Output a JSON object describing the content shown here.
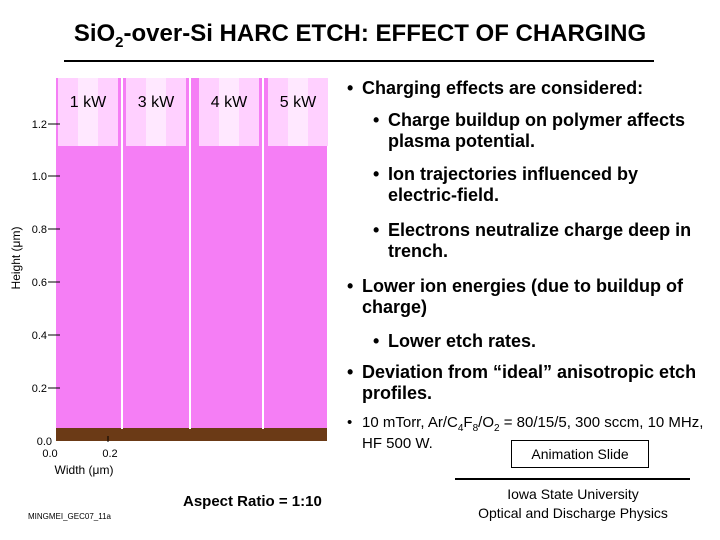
{
  "slide": {
    "title_pre": "Si",
    "title_o": "O",
    "title_sub": "2",
    "title_post": "-over-Si HARC ETCH: EFFECT OF CHARGING",
    "slide_id": "MINGMEI_GEC07_11a"
  },
  "chart": {
    "power_labels": [
      "1 kW",
      "3 kW",
      "4 kW",
      "5 kW"
    ],
    "y_ticks": [
      "1.2",
      "1.0",
      "0.8",
      "0.6",
      "0.4",
      "0.2",
      "0.0"
    ],
    "x_ticks": [
      "0.0",
      "0.2"
    ],
    "y_axis_label": "Height (μm)",
    "x_axis_label": "Width (μm)",
    "colors": {
      "oxide": "#f57ef5",
      "substrate": "#6b3a16",
      "mask": "#ffd0ff",
      "trench": "#ffe8ff"
    }
  },
  "bullets": {
    "main": "Charging effects are considered:",
    "sub1": "Charge buildup on polymer affects plasma potential.",
    "sub2": "Ion trajectories influenced by electric-field.",
    "sub3": "Electrons neutralize charge deep in trench.",
    "main2": "Lower ion energies (due to buildup of charge)",
    "sub4": "Lower etch rates.",
    "main3": "Deviation from “ideal” anisotropic etch profiles."
  },
  "conditions": {
    "p1": "10 mTorr, Ar/C",
    "s1": "4",
    "p2": "F",
    "s2": "8",
    "p3": "/O",
    "s3": "2",
    "p4": " = 80/15/5, 300 sccm, 10 MHz, HF 500 W."
  },
  "animation_label": "Animation Slide",
  "aspect_ratio": "Aspect Ratio = 1:10",
  "university": {
    "line1": "Iowa State University",
    "line2": "Optical and Discharge Physics"
  }
}
